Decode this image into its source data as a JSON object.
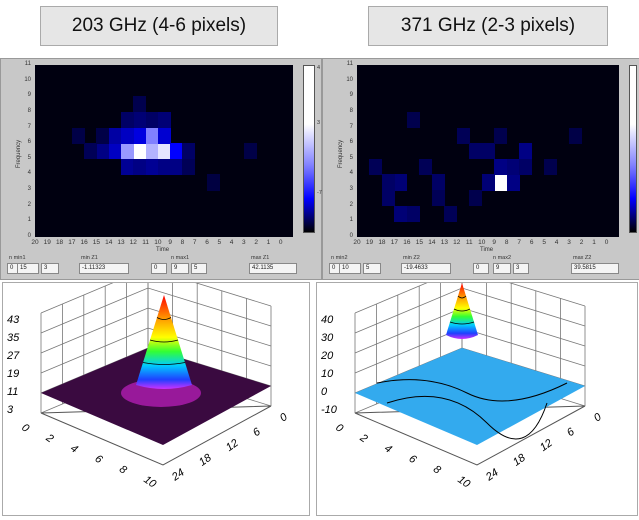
{
  "titles": [
    "203 GHz (4-6 pixels)",
    "371 GHz (2-3 pixels)"
  ],
  "heatmaps": [
    {
      "y_label": "Frequency",
      "x_label": "Time",
      "y_ticks": [
        "11",
        "10",
        "9",
        "8",
        "7",
        "6",
        "5",
        "4",
        "3",
        "2",
        "1",
        "0"
      ],
      "x_ticks": [
        "20",
        "19",
        "18",
        "17",
        "16",
        "15",
        "14",
        "13",
        "12",
        "11",
        "10",
        "9",
        "8",
        "7",
        "6",
        "5",
        "4",
        "3",
        "2",
        "1",
        "0"
      ],
      "colorbar_ticks": [
        "4",
        "3",
        "-7"
      ],
      "cells": [
        [
          12,
          5,
          1.0
        ],
        [
          10,
          5,
          0.95
        ],
        [
          11,
          5,
          0.85
        ],
        [
          11,
          6,
          0.75
        ],
        [
          12,
          6,
          0.6
        ],
        [
          13,
          5,
          0.8
        ],
        [
          9,
          5,
          0.7
        ],
        [
          10,
          6,
          0.55
        ],
        [
          13,
          6,
          0.5
        ],
        [
          14,
          5,
          0.5
        ],
        [
          14,
          6,
          0.4
        ],
        [
          13,
          4,
          0.35
        ],
        [
          12,
          4,
          0.3
        ],
        [
          11,
          4,
          0.35
        ],
        [
          10,
          4,
          0.3
        ],
        [
          9,
          4,
          0.3
        ],
        [
          10,
          7,
          0.25
        ],
        [
          12,
          7,
          0.25
        ],
        [
          15,
          5,
          0.3
        ],
        [
          16,
          5,
          0.15
        ],
        [
          11,
          7,
          0.2
        ],
        [
          13,
          7,
          0.2
        ],
        [
          8,
          5,
          0.2
        ],
        [
          8,
          4,
          0.15
        ],
        [
          12,
          8,
          0.12
        ],
        [
          15,
          6,
          0.1
        ],
        [
          17,
          6,
          0.1
        ],
        [
          6,
          3,
          0.08
        ],
        [
          3,
          5,
          0.1
        ]
      ],
      "fields": {
        "n_min_label": "n min1",
        "n_min_values": [
          "0",
          "15",
          "3"
        ],
        "min_label": "min Z1",
        "min_value": "-1.11323",
        "n_max_label": "n max1",
        "n_max_values": [
          "0",
          "9",
          "5"
        ],
        "max_label": "max Z1",
        "max_value": "42.1135"
      }
    },
    {
      "y_label": "Frequency",
      "x_label": "Time",
      "y_ticks": [
        "11",
        "10",
        "9",
        "8",
        "7",
        "6",
        "5",
        "4",
        "3",
        "2",
        "1",
        "0"
      ],
      "x_ticks": [
        "20",
        "19",
        "18",
        "17",
        "16",
        "15",
        "14",
        "13",
        "12",
        "11",
        "10",
        "9",
        "8",
        "7",
        "6",
        "5",
        "4",
        "3",
        "2",
        "1",
        "0"
      ],
      "cells": [
        [
          9,
          3,
          1.0
        ],
        [
          8,
          3,
          0.3
        ],
        [
          9,
          4,
          0.3
        ],
        [
          10,
          3,
          0.25
        ],
        [
          8,
          4,
          0.25
        ],
        [
          7,
          5,
          0.3
        ],
        [
          10,
          5,
          0.2
        ],
        [
          11,
          5,
          0.2
        ],
        [
          7,
          4,
          0.2
        ],
        [
          17,
          3,
          0.25
        ],
        [
          18,
          2,
          0.2
        ],
        [
          16,
          1,
          0.2
        ],
        [
          17,
          1,
          0.25
        ],
        [
          15,
          4,
          0.15
        ],
        [
          14,
          3,
          0.2
        ],
        [
          13,
          1,
          0.15
        ],
        [
          12,
          6,
          0.15
        ],
        [
          19,
          4,
          0.15
        ],
        [
          18,
          3,
          0.2
        ],
        [
          14,
          2,
          0.15
        ],
        [
          5,
          4,
          0.12
        ],
        [
          16,
          7,
          0.12
        ],
        [
          3,
          6,
          0.1
        ],
        [
          9,
          6,
          0.12
        ],
        [
          11,
          2,
          0.12
        ]
      ],
      "fields": {
        "n_min_label": "n min2",
        "n_min_values": [
          "0",
          "10",
          "5"
        ],
        "min_label": "min Z2",
        "min_value": "-19.4633",
        "n_max_label": "n max2",
        "n_max_values": [
          "0",
          "9",
          "3"
        ],
        "max_label": "max Z2",
        "max_value": "39.5815"
      }
    }
  ],
  "surfaces": [
    {
      "z_ticks": [
        "43",
        "35",
        "27",
        "19",
        "11",
        "3"
      ],
      "x_ticks": [
        "0",
        "2",
        "4",
        "6",
        "8",
        "10"
      ],
      "y_ticks": [
        "0",
        "6",
        "12",
        "18",
        "24"
      ],
      "floor_color": "#3a0a40"
    },
    {
      "z_ticks": [
        "40",
        "30",
        "20",
        "10",
        "0",
        "-10"
      ],
      "x_ticks": [
        "0",
        "2",
        "4",
        "6",
        "8",
        "10"
      ],
      "y_ticks": [
        "0",
        "6",
        "12",
        "18",
        "24"
      ],
      "floor_color": "#33aaee"
    }
  ]
}
